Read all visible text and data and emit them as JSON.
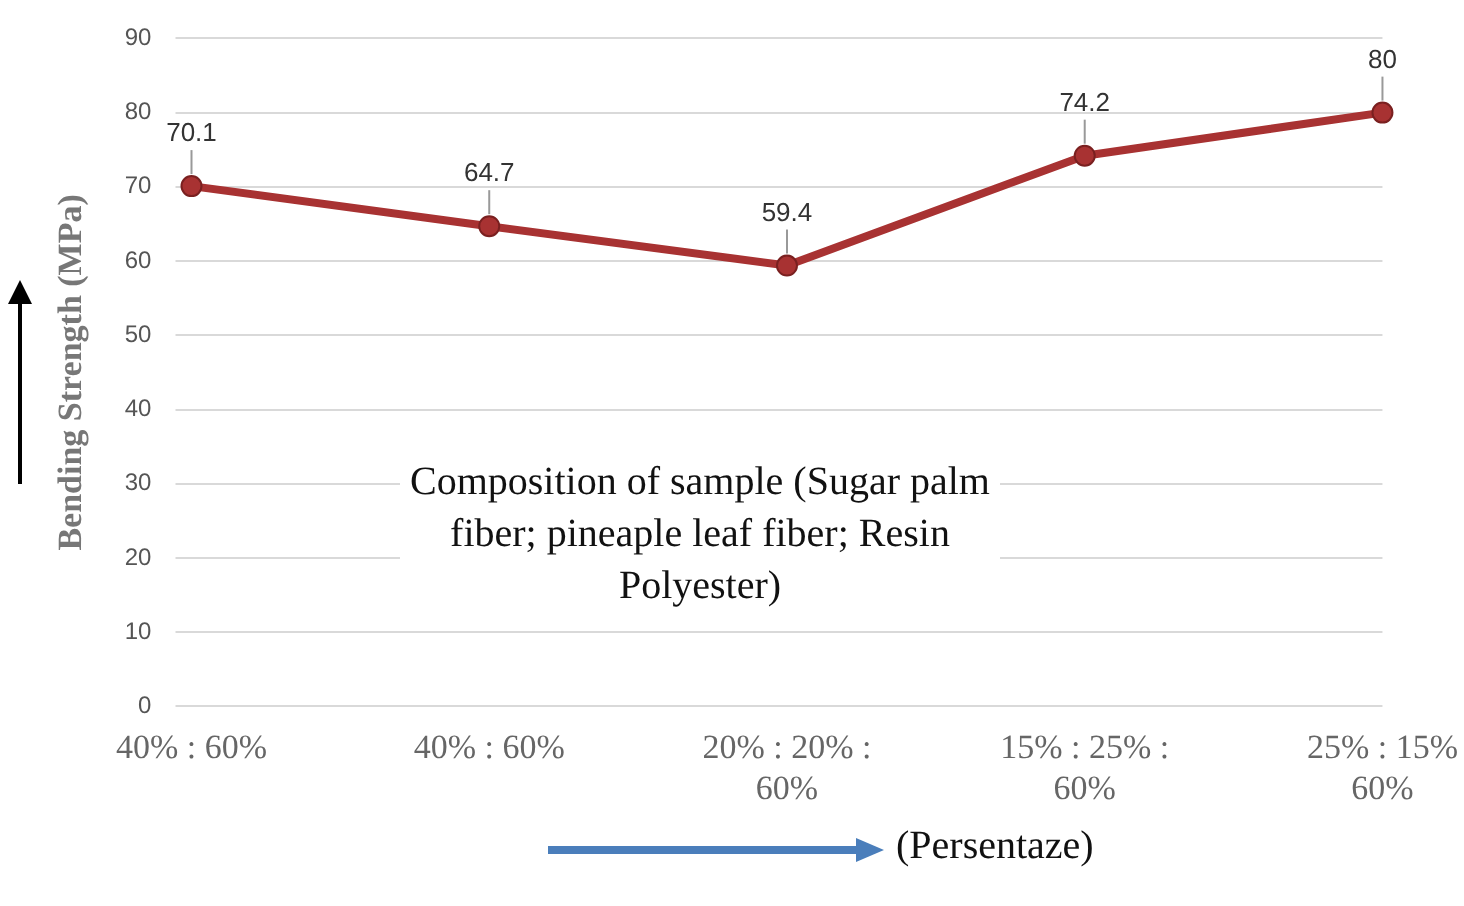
{
  "chart_data": {
    "type": "line",
    "categories": [
      "40% : 60%",
      "40% : 60%",
      "20% : 20% : 60%",
      "15% : 25% : 60%",
      "25% : 15% 60%"
    ],
    "series": [
      {
        "color": "#a83232",
        "values": [
          70.1,
          64.7,
          59.4,
          74.2,
          80
        ]
      }
    ],
    "ylim": [
      0,
      90
    ],
    "yticks": [
      0,
      10,
      20,
      30,
      40,
      50,
      60,
      70,
      80,
      90
    ],
    "grid": "y",
    "legend": false,
    "marker": "circle",
    "line_style": "solid",
    "data_labels": true,
    "ylabel": "Bending Strength (MPa)",
    "xlabel": "(Persentaze)",
    "annotations": [
      "Composition of sample (Sugar palm fiber; pineaple leaf fiber; Resin Polyester)"
    ]
  }
}
